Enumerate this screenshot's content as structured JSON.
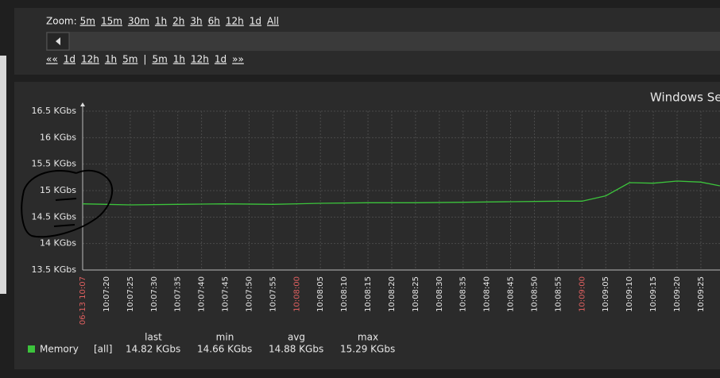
{
  "ui": {
    "zoom_label": "Zoom:",
    "zoom_options": [
      "5m",
      "15m",
      "30m",
      "1h",
      "2h",
      "3h",
      "6h",
      "12h",
      "1d",
      "All"
    ],
    "nav_first": "««",
    "nav_back": [
      "1d",
      "12h",
      "1h",
      "5m"
    ],
    "nav_separator": "|",
    "nav_forward": [
      "5m",
      "1h",
      "12h",
      "1d"
    ],
    "nav_last": "»»"
  },
  "chart_data": {
    "type": "line",
    "title": "Windows Se",
    "x": [
      "10:07:15",
      "10:07:25",
      "10:07:35",
      "10:07:45",
      "10:07:55",
      "10:08:05",
      "10:08:15",
      "10:08:25",
      "10:08:35",
      "10:08:45",
      "10:08:55",
      "10:09:00",
      "10:09:05",
      "10:09:10",
      "10:09:15",
      "10:09:20",
      "10:09:25",
      "10:09:29"
    ],
    "xlim": [
      "10:07:15",
      "10:09:29"
    ],
    "xticks": [
      {
        "value": "10:07:15",
        "label": "06-13 10:07"
      },
      "10:07:20",
      "10:07:25",
      "10:07:30",
      "10:07:35",
      "10:07:40",
      "10:07:45",
      "10:07:50",
      "10:07:55",
      "10:08:00",
      "10:08:05",
      "10:08:10",
      "10:08:15",
      "10:08:20",
      "10:08:25",
      "10:08:30",
      "10:08:35",
      "10:08:40",
      "10:08:45",
      "10:08:50",
      "10:08:55",
      "10:09:00",
      "10:09:05",
      "10:09:10",
      "10:09:15",
      "10:09:20",
      "10:09:25"
    ],
    "highlight_color": "#e06060",
    "ylim": [
      13.5,
      16.5
    ],
    "yticks": [
      {
        "value": 13.5,
        "label": "13.5 KGbs"
      },
      {
        "value": 14,
        "label": "14 KGbs"
      },
      {
        "value": 14.5,
        "label": "14.5 KGbs"
      },
      {
        "value": 15,
        "label": "15 KGbs"
      },
      {
        "value": 15.5,
        "label": "15.5 KGbs"
      },
      {
        "value": 16,
        "label": "16 KGbs"
      },
      {
        "value": 16.5,
        "label": "16.5 KGbs"
      }
    ],
    "grid": true,
    "stat_names": [
      "last",
      "min",
      "avg",
      "max"
    ],
    "series": [
      {
        "name": "Memory",
        "color": "#3cc43c",
        "function": "[all]",
        "values": [
          14.75,
          14.73,
          14.74,
          14.75,
          14.74,
          14.76,
          14.77,
          14.77,
          14.78,
          14.79,
          14.8,
          14.8,
          14.9,
          15.15,
          15.14,
          15.18,
          15.16,
          15.09
        ],
        "stats": [
          14.82,
          14.66,
          14.88,
          15.29
        ],
        "stats_labels": [
          "14.82 KGbs",
          "14.66 KGbs",
          "14.88 KGbs",
          "15.29 KGbs"
        ]
      }
    ]
  }
}
